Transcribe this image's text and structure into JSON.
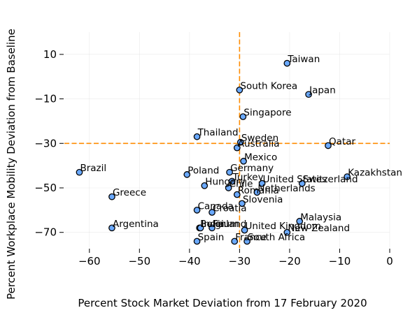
{
  "chart_data": {
    "type": "scatter",
    "xlabel": "Percent Stock Market Deviation from 17 February 2020",
    "ylabel": "Percent Workplace Mobility Deviation from Baseline",
    "xlim": [
      -65,
      0
    ],
    "ylim": [
      -77,
      20
    ],
    "xticks": [
      "−60",
      "−50",
      "−40",
      "−30",
      "−20",
      "−10",
      "0"
    ],
    "xtick_values": [
      -60,
      -50,
      -40,
      -30,
      -20,
      -10,
      0
    ],
    "yticks": [
      "10",
      "−10",
      "−30",
      "−50",
      "−70"
    ],
    "ytick_values": [
      10,
      -10,
      -30,
      -50,
      -70
    ],
    "grid": true,
    "reference_lines": {
      "x": -30,
      "y": -30,
      "color": "#ff8c00",
      "style": "dashed"
    },
    "marker_color": "#6aa9ff",
    "points": [
      {
        "label": "Taiwan",
        "x": -20.5,
        "y": 6
      },
      {
        "label": "South Korea",
        "x": -30,
        "y": -6
      },
      {
        "label": "Japan",
        "x": -16.2,
        "y": -8
      },
      {
        "label": "Singapore",
        "x": -29.3,
        "y": -18
      },
      {
        "label": "Thailand",
        "x": -38.5,
        "y": -27
      },
      {
        "label": "Sweden",
        "x": -29.8,
        "y": -29.5
      },
      {
        "label": "Australia",
        "x": -30.5,
        "y": -32
      },
      {
        "label": "Qatar",
        "x": -12.3,
        "y": -31
      },
      {
        "label": "Mexico",
        "x": -29.2,
        "y": -38
      },
      {
        "label": "Brazil",
        "x": -62,
        "y": -43
      },
      {
        "label": "Poland",
        "x": -40.5,
        "y": -44
      },
      {
        "label": "Germany",
        "x": -32,
        "y": -43
      },
      {
        "label": "Turkey",
        "x": -31.5,
        "y": -47
      },
      {
        "label": "United States",
        "x": -25.5,
        "y": -48
      },
      {
        "label": "Switzerland",
        "x": -17.5,
        "y": -48
      },
      {
        "label": "Kazakhstan",
        "x": -8.5,
        "y": -45
      },
      {
        "label": "Hungary",
        "x": -37,
        "y": -49
      },
      {
        "label": "Chile",
        "x": -32.2,
        "y": -50
      },
      {
        "label": "Greece",
        "x": -55.5,
        "y": -54
      },
      {
        "label": "Netherlands",
        "x": -26.5,
        "y": -52
      },
      {
        "label": "Romania",
        "x": -30.5,
        "y": -53
      },
      {
        "label": "Slovenia",
        "x": -29.5,
        "y": -57
      },
      {
        "label": "Canada",
        "x": -38.5,
        "y": -60
      },
      {
        "label": "Croatia",
        "x": -35.5,
        "y": -61
      },
      {
        "label": "Malaysia",
        "x": -18,
        "y": -65
      },
      {
        "label": "Belgium",
        "x": -38,
        "y": -68
      },
      {
        "label": "India",
        "x": -37.8,
        "y": -68
      },
      {
        "label": "Finland",
        "x": -35.5,
        "y": -68
      },
      {
        "label": "United Kingdom",
        "x": -29,
        "y": -69
      },
      {
        "label": "New Zealand",
        "x": -20.5,
        "y": -70
      },
      {
        "label": "Argentina",
        "x": -55.5,
        "y": -68
      },
      {
        "label": "Spain",
        "x": -38.5,
        "y": -74
      },
      {
        "label": "France",
        "x": -31,
        "y": -74
      },
      {
        "label": "South Africa",
        "x": -28.5,
        "y": -74
      }
    ]
  }
}
